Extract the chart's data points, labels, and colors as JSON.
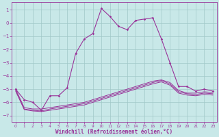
{
  "background_color": "#c8e8e8",
  "grid_color": "#a0c8c8",
  "line_color": "#993399",
  "xlabel": "Windchill (Refroidissement éolien,°C)",
  "ylim": [
    -7.5,
    1.6
  ],
  "xlim": [
    -0.5,
    23.5
  ],
  "x_ticks": [
    0,
    1,
    2,
    3,
    4,
    5,
    6,
    7,
    8,
    9,
    10,
    11,
    12,
    13,
    14,
    15,
    16,
    17,
    18,
    19,
    20,
    21,
    22,
    23
  ],
  "y_ticks": [
    1,
    0,
    -1,
    -2,
    -3,
    -4,
    -5,
    -6,
    -7
  ],
  "main_x": [
    0,
    1,
    2,
    3,
    4,
    5,
    6,
    7,
    8,
    9,
    10,
    11,
    12,
    13,
    14,
    15,
    16,
    17,
    18,
    19,
    20,
    21,
    22,
    23
  ],
  "main_y": [
    -5.0,
    -5.8,
    -6.0,
    -6.6,
    -5.5,
    -5.5,
    -4.9,
    -2.3,
    -1.2,
    -0.8,
    1.1,
    0.5,
    -0.25,
    -0.5,
    0.2,
    0.3,
    0.4,
    -1.2,
    -3.0,
    -4.8,
    -4.8,
    -5.15,
    -5.0,
    -5.15
  ],
  "line2_x": [
    0,
    1,
    2,
    3,
    4,
    5,
    6,
    7,
    8,
    9,
    10,
    11,
    12,
    13,
    14,
    15,
    16,
    17,
    18,
    19,
    20,
    21,
    22,
    23
  ],
  "line2_y": [
    -5.0,
    -6.4,
    -6.5,
    -6.5,
    -6.4,
    -6.3,
    -6.2,
    -6.1,
    -6.0,
    -5.8,
    -5.6,
    -5.4,
    -5.2,
    -5.0,
    -4.8,
    -4.6,
    -4.4,
    -4.3,
    -4.5,
    -5.1,
    -5.3,
    -5.3,
    -5.2,
    -5.25
  ],
  "line3_x": [
    0,
    1,
    2,
    3,
    4,
    5,
    6,
    7,
    8,
    9,
    10,
    11,
    12,
    13,
    14,
    15,
    16,
    17,
    18,
    19,
    20,
    21,
    22,
    23
  ],
  "line3_y": [
    -5.1,
    -6.5,
    -6.6,
    -6.65,
    -6.5,
    -6.4,
    -6.3,
    -6.2,
    -6.1,
    -5.9,
    -5.7,
    -5.5,
    -5.3,
    -5.1,
    -4.9,
    -4.7,
    -4.5,
    -4.35,
    -4.6,
    -5.2,
    -5.35,
    -5.4,
    -5.3,
    -5.35
  ],
  "line4_x": [
    0,
    1,
    2,
    3,
    4,
    5,
    6,
    7,
    8,
    9,
    10,
    11,
    12,
    13,
    14,
    15,
    16,
    17,
    18,
    19,
    20,
    21,
    22,
    23
  ],
  "line4_y": [
    -5.15,
    -6.55,
    -6.65,
    -6.7,
    -6.6,
    -6.5,
    -6.4,
    -6.3,
    -6.2,
    -6.0,
    -5.8,
    -5.6,
    -5.4,
    -5.2,
    -5.0,
    -4.8,
    -4.6,
    -4.45,
    -4.7,
    -5.3,
    -5.45,
    -5.5,
    -5.4,
    -5.45
  ]
}
